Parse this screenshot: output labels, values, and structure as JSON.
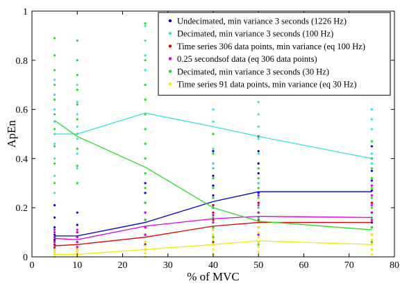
{
  "chart_data": {
    "type": "line",
    "xlabel": "% of MVC",
    "ylabel": "ApEn",
    "xlim": [
      0,
      80
    ],
    "ylim": [
      0,
      1
    ],
    "xticks": [
      0,
      10,
      20,
      30,
      40,
      50,
      60,
      70,
      80
    ],
    "yticks": [
      0,
      0.2,
      0.4,
      0.6,
      0.8,
      1
    ],
    "ytick_labels": [
      "0",
      "0.2",
      "0.4",
      "0.6",
      "0.8",
      "1"
    ],
    "x": [
      5,
      10,
      25,
      40,
      50,
      75
    ],
    "grid": false,
    "legend_position": "top-right",
    "series": [
      {
        "name": "Undecimated, min variance 3 seconds (1226 Hz)",
        "color": "#0000cc",
        "values": [
          0.085,
          0.085,
          0.14,
          0.225,
          0.265,
          0.265
        ],
        "scatter": [
          [
            0.03,
            0.05,
            0.07,
            0.09,
            0.12,
            0.16,
            0.21
          ],
          [
            0.03,
            0.06,
            0.08,
            0.1,
            0.13,
            0.18
          ],
          [
            0.05,
            0.09,
            0.12,
            0.15,
            0.18,
            0.22,
            0.26,
            0.3
          ],
          [
            0.12,
            0.17,
            0.21,
            0.25,
            0.29,
            0.33,
            0.38,
            0.43
          ],
          [
            0.14,
            0.18,
            0.22,
            0.26,
            0.3,
            0.34,
            0.38,
            0.43,
            0.49
          ],
          [
            0.14,
            0.18,
            0.22,
            0.27,
            0.31,
            0.35,
            0.4,
            0.45
          ]
        ]
      },
      {
        "name": "Decimated, min variance 3 seconds (100 Hz)",
        "color": "#33e0e0",
        "values": [
          0.5,
          0.5,
          0.585,
          0.53,
          0.49,
          0.4
        ],
        "scatter": [
          [
            0.26,
            0.33,
            0.4,
            0.46,
            0.5,
            0.55,
            0.6,
            0.66,
            0.72
          ],
          [
            0.3,
            0.36,
            0.42,
            0.48,
            0.53,
            0.58,
            0.63,
            0.7
          ],
          [
            0.4,
            0.46,
            0.52,
            0.58,
            0.64,
            0.7,
            0.76,
            0.82,
            0.88,
            0.94
          ],
          [
            0.32,
            0.38,
            0.44,
            0.5,
            0.55,
            0.6,
            0.66
          ],
          [
            0.3,
            0.36,
            0.42,
            0.48,
            0.53,
            0.58,
            0.63,
            0.7
          ],
          [
            0.32,
            0.38,
            0.42,
            0.47,
            0.52,
            0.56,
            0.6
          ]
        ]
      },
      {
        "name": "Time series 306 data points, min variance (eq 100 Hz)",
        "color": "#e00000",
        "values": [
          0.045,
          0.05,
          0.08,
          0.125,
          0.14,
          0.14
        ],
        "scatter": [
          [
            0.02,
            0.035,
            0.05,
            0.065,
            0.08
          ],
          [
            0.02,
            0.04,
            0.06,
            0.08
          ],
          [
            0.03,
            0.06,
            0.09,
            0.12,
            0.15
          ],
          [
            0.06,
            0.09,
            0.12,
            0.15,
            0.18,
            0.21
          ],
          [
            0.06,
            0.09,
            0.12,
            0.15,
            0.18,
            0.22
          ],
          [
            0.06,
            0.09,
            0.12,
            0.15,
            0.18,
            0.22
          ]
        ]
      },
      {
        "name": "0.25 secondsof data (eq 306 data points)",
        "color": "#dd00dd",
        "values": [
          0.075,
          0.07,
          0.125,
          0.155,
          0.165,
          0.16
        ],
        "scatter": [
          [
            0.04,
            0.06,
            0.08,
            0.1,
            0.11
          ],
          [
            0.04,
            0.06,
            0.08,
            0.1,
            0.11
          ],
          [
            0.06,
            0.09,
            0.12,
            0.15,
            0.18,
            0.22
          ],
          [
            0.08,
            0.11,
            0.14,
            0.17,
            0.2,
            0.24
          ],
          [
            0.09,
            0.12,
            0.15,
            0.18,
            0.21,
            0.25
          ],
          [
            0.09,
            0.12,
            0.15,
            0.18,
            0.21,
            0.25,
            0.29
          ]
        ]
      },
      {
        "name": "Decimated, min variance 3 seconds  (30 Hz)",
        "color": "#22dd22",
        "values": [
          0.555,
          0.49,
          0.365,
          0.2,
          0.145,
          0.11
        ],
        "scatter": [
          [
            0.3,
            0.38,
            0.45,
            0.52,
            0.58,
            0.64,
            0.7,
            0.76,
            0.82,
            0.89
          ],
          [
            0.3,
            0.37,
            0.44,
            0.5,
            0.56,
            0.62,
            0.68,
            0.74,
            0.8,
            0.88
          ],
          [
            0.15,
            0.22,
            0.28,
            0.34,
            0.4,
            0.46,
            0.52,
            0.58,
            0.64,
            0.7,
            0.8,
            0.95
          ],
          [
            0.08,
            0.12,
            0.16,
            0.2,
            0.24,
            0.28,
            0.32,
            0.36,
            0.42,
            0.5
          ],
          [
            0.05,
            0.08,
            0.12,
            0.16,
            0.2,
            0.24,
            0.28,
            0.32,
            0.36
          ],
          [
            0.03,
            0.06,
            0.09,
            0.12,
            0.16,
            0.2,
            0.24,
            0.28,
            0.32,
            0.36,
            0.4,
            0.47
          ]
        ]
      },
      {
        "name": "Time series 91 data points, min variance (eq 30 Hz)",
        "color": "#eeee00",
        "values": [
          0.01,
          0.01,
          0.03,
          0.05,
          0.065,
          0.05
        ],
        "scatter": [
          [
            0.0,
            0.01,
            0.02,
            0.03
          ],
          [
            0.0,
            0.01,
            0.02,
            0.03
          ],
          [
            0.0,
            0.015,
            0.03,
            0.045,
            0.06
          ],
          [
            0.01,
            0.03,
            0.05,
            0.07,
            0.09,
            0.11
          ],
          [
            0.02,
            0.04,
            0.06,
            0.08,
            0.1,
            0.12,
            0.14
          ],
          [
            0.01,
            0.03,
            0.05,
            0.07,
            0.09
          ]
        ]
      }
    ]
  }
}
